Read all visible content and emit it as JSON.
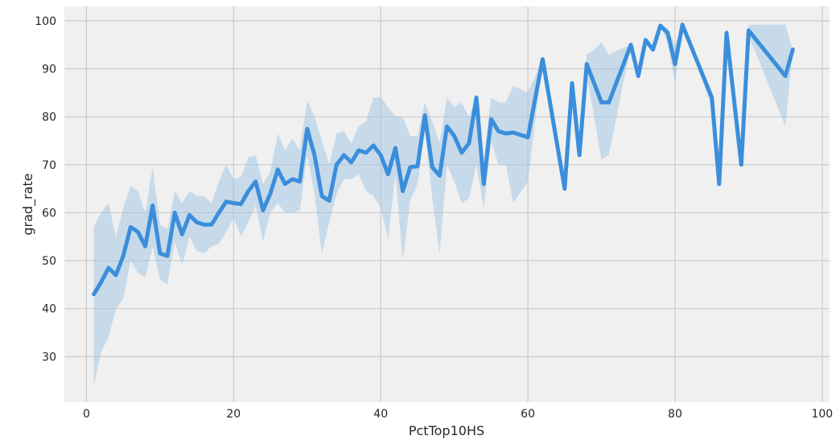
{
  "chart_data": {
    "type": "line",
    "title": "",
    "xlabel": "PctTop10HS",
    "ylabel": "grad_rate",
    "xlim": [
      -3,
      101
    ],
    "ylim": [
      20.5,
      103
    ],
    "xticks": [
      0,
      20,
      40,
      60,
      80,
      100
    ],
    "yticks": [
      30,
      40,
      50,
      60,
      70,
      80,
      90,
      100
    ],
    "grid": true,
    "colors": {
      "line": "#3b8edb",
      "band": "#9ec4e4",
      "background": "#f0f0f0",
      "grid": "#cbcbcb"
    },
    "series": [
      {
        "points": [
          [
            1,
            43
          ],
          [
            2,
            45.5
          ],
          [
            3,
            48.5
          ],
          [
            4,
            47
          ],
          [
            5,
            51
          ],
          [
            6,
            57
          ],
          [
            7,
            56
          ],
          [
            8,
            53
          ],
          [
            9,
            61.5
          ],
          [
            10,
            51.5
          ],
          [
            11,
            51
          ],
          [
            12,
            60
          ],
          [
            13,
            55.5
          ],
          [
            14,
            59.5
          ],
          [
            15,
            58
          ],
          [
            16,
            57.5
          ],
          [
            17,
            57.5
          ],
          [
            18,
            60
          ],
          [
            19,
            62.3
          ],
          [
            20,
            62
          ],
          [
            21,
            61.8
          ],
          [
            22,
            64.5
          ],
          [
            23,
            66.5
          ],
          [
            24,
            60.5
          ],
          [
            25,
            64
          ],
          [
            26,
            69
          ],
          [
            27,
            66
          ],
          [
            28,
            67
          ],
          [
            29,
            66.5
          ],
          [
            30,
            77.5
          ],
          [
            31,
            72
          ],
          [
            32,
            63.5
          ],
          [
            33,
            62.5
          ],
          [
            34,
            70
          ],
          [
            35,
            72
          ],
          [
            36,
            70.5
          ],
          [
            37,
            73
          ],
          [
            38,
            72.5
          ],
          [
            39,
            74
          ],
          [
            40,
            72
          ],
          [
            41,
            68
          ],
          [
            42,
            73.5
          ],
          [
            43,
            64.5
          ],
          [
            44,
            69.5
          ],
          [
            45,
            69.7
          ],
          [
            46,
            80.3
          ],
          [
            47,
            69.5
          ],
          [
            48,
            67.7
          ],
          [
            49,
            78
          ],
          [
            50,
            76
          ],
          [
            51,
            72.5
          ],
          [
            52,
            74.5
          ],
          [
            53,
            84
          ],
          [
            54,
            66
          ],
          [
            55,
            79.5
          ],
          [
            56,
            77
          ],
          [
            57,
            76.5
          ],
          [
            58,
            76.7
          ],
          [
            60,
            75.7
          ],
          [
            62,
            92
          ],
          [
            65,
            65
          ],
          [
            66,
            87
          ],
          [
            67,
            72
          ],
          [
            68,
            91
          ],
          [
            69,
            87
          ],
          [
            70,
            83
          ],
          [
            71,
            83
          ],
          [
            74,
            95
          ],
          [
            75,
            88.5
          ],
          [
            76,
            96
          ],
          [
            77,
            94
          ],
          [
            78,
            99
          ],
          [
            79,
            97.5
          ],
          [
            80,
            91
          ],
          [
            81,
            99.2
          ],
          [
            85,
            84
          ],
          [
            86,
            66
          ],
          [
            87,
            97.5
          ],
          [
            89,
            70
          ],
          [
            90,
            98
          ],
          [
            95,
            88.5
          ],
          [
            96,
            94
          ]
        ],
        "ci_upper": [
          [
            1,
            57
          ],
          [
            2,
            60
          ],
          [
            3,
            62
          ],
          [
            4,
            55
          ],
          [
            5,
            61
          ],
          [
            6,
            65.5
          ],
          [
            7,
            64.5
          ],
          [
            8,
            60
          ],
          [
            9,
            69.5
          ],
          [
            10,
            57.5
          ],
          [
            11,
            56.5
          ],
          [
            12,
            64.5
          ],
          [
            13,
            62
          ],
          [
            14,
            64.5
          ],
          [
            15,
            63.5
          ],
          [
            16,
            63.5
          ],
          [
            17,
            62
          ],
          [
            18,
            66.5
          ],
          [
            19,
            70
          ],
          [
            20,
            67
          ],
          [
            21,
            67.5
          ],
          [
            22,
            71.5
          ],
          [
            23,
            72
          ],
          [
            24,
            66
          ],
          [
            25,
            68.5
          ],
          [
            26,
            76.5
          ],
          [
            27,
            73
          ],
          [
            28,
            75.5
          ],
          [
            29,
            73
          ],
          [
            30,
            83.5
          ],
          [
            31,
            80
          ],
          [
            32,
            75
          ],
          [
            33,
            70
          ],
          [
            34,
            76.5
          ],
          [
            35,
            77
          ],
          [
            36,
            74.5
          ],
          [
            37,
            78
          ],
          [
            38,
            79
          ],
          [
            39,
            84
          ],
          [
            40,
            84
          ],
          [
            41,
            82
          ],
          [
            42,
            80
          ],
          [
            43,
            80
          ],
          [
            44,
            76
          ],
          [
            45,
            76
          ],
          [
            46,
            83
          ],
          [
            47,
            79
          ],
          [
            48,
            74.5
          ],
          [
            49,
            84
          ],
          [
            50,
            82
          ],
          [
            51,
            83
          ],
          [
            52,
            80
          ],
          [
            53,
            84
          ],
          [
            54,
            71
          ],
          [
            55,
            84
          ],
          [
            56,
            83
          ],
          [
            57,
            83
          ],
          [
            58,
            86.5
          ],
          [
            60,
            85
          ],
          [
            62,
            92
          ],
          [
            65,
            65
          ],
          [
            66,
            87
          ],
          [
            67,
            72
          ],
          [
            68,
            93
          ],
          [
            69,
            94
          ],
          [
            70,
            95.5
          ],
          [
            71,
            93
          ],
          [
            74,
            95
          ],
          [
            75,
            88.5
          ],
          [
            76,
            96
          ],
          [
            77,
            94
          ],
          [
            78,
            99
          ],
          [
            79,
            98.5
          ],
          [
            80,
            95
          ],
          [
            81,
            99.2
          ],
          [
            85,
            85
          ],
          [
            86,
            66
          ],
          [
            87,
            97.5
          ],
          [
            89,
            70
          ],
          [
            90,
            99.2
          ],
          [
            95,
            99.2
          ],
          [
            96,
            94
          ]
        ],
        "ci_lower": [
          [
            1,
            24
          ],
          [
            2,
            31
          ],
          [
            3,
            34
          ],
          [
            4,
            40
          ],
          [
            5,
            42
          ],
          [
            6,
            50
          ],
          [
            7,
            47.5
          ],
          [
            8,
            46.5
          ],
          [
            9,
            53
          ],
          [
            10,
            46
          ],
          [
            11,
            45
          ],
          [
            12,
            54
          ],
          [
            13,
            49
          ],
          [
            14,
            55
          ],
          [
            15,
            52
          ],
          [
            16,
            51.5
          ],
          [
            17,
            53
          ],
          [
            18,
            53.5
          ],
          [
            19,
            56
          ],
          [
            20,
            59
          ],
          [
            21,
            55
          ],
          [
            22,
            58
          ],
          [
            23,
            61.5
          ],
          [
            24,
            54
          ],
          [
            25,
            60
          ],
          [
            26,
            62
          ],
          [
            27,
            60
          ],
          [
            28,
            60
          ],
          [
            29,
            60.5
          ],
          [
            30,
            72
          ],
          [
            31,
            64
          ],
          [
            32,
            51.5
          ],
          [
            33,
            58
          ],
          [
            34,
            64
          ],
          [
            35,
            67
          ],
          [
            36,
            67
          ],
          [
            37,
            68
          ],
          [
            38,
            64.5
          ],
          [
            39,
            63.5
          ],
          [
            40,
            61
          ],
          [
            41,
            54.5
          ],
          [
            42,
            68
          ],
          [
            43,
            50
          ],
          [
            44,
            62.5
          ],
          [
            45,
            66
          ],
          [
            46,
            77
          ],
          [
            47,
            63
          ],
          [
            48,
            51.5
          ],
          [
            49,
            70
          ],
          [
            50,
            66.5
          ],
          [
            51,
            62
          ],
          [
            52,
            63
          ],
          [
            53,
            70
          ],
          [
            54,
            61
          ],
          [
            55,
            75
          ],
          [
            56,
            70
          ],
          [
            57,
            70
          ],
          [
            58,
            62
          ],
          [
            60,
            66.5
          ],
          [
            62,
            92
          ],
          [
            65,
            65
          ],
          [
            66,
            87
          ],
          [
            67,
            72
          ],
          [
            68,
            89
          ],
          [
            69,
            80
          ],
          [
            70,
            71
          ],
          [
            71,
            72
          ],
          [
            74,
            95
          ],
          [
            75,
            88.5
          ],
          [
            76,
            96
          ],
          [
            77,
            94
          ],
          [
            78,
            99
          ],
          [
            79,
            95.5
          ],
          [
            80,
            87
          ],
          [
            81,
            99.2
          ],
          [
            85,
            82
          ],
          [
            86,
            66
          ],
          [
            87,
            97.5
          ],
          [
            89,
            70
          ],
          [
            90,
            97
          ],
          [
            95,
            78
          ],
          [
            96,
            94
          ]
        ]
      }
    ]
  }
}
